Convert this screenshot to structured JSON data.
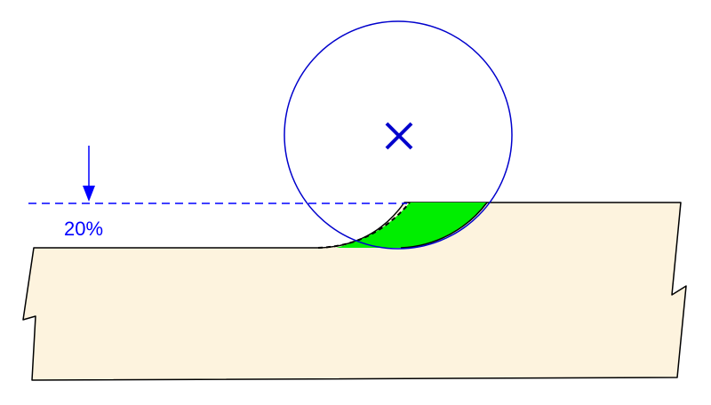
{
  "diagram": {
    "depth_label": "20%"
  },
  "colors": {
    "workpiece_fill": "#fdf3de",
    "outline": "#000000",
    "cutter": "#0000cc",
    "guide": "#0000ff",
    "removed_material": "#00ee00",
    "background": "#ffffff"
  },
  "icons": {
    "center": "x-mark-icon",
    "depth": "down-arrow-icon"
  }
}
